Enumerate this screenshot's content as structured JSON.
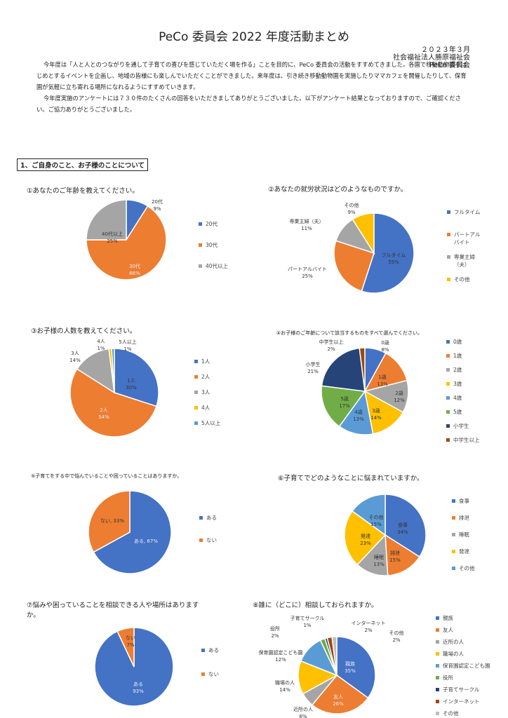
{
  "doc": {
    "title": "PeCo 委員会 2022 年度活動まとめ",
    "date": "２０２３年３月",
    "org": "社会福祉法人勝原福祉会",
    "committee": "PeCo 委員会",
    "intro_p1": "今年度は「人と人とのつながりを通して子育ての喜びを感じていただく場を作る」ことを目的に、PeCo 委員会の活動をすすめてきました。各園で移動動物園をはじめとするイベントを企画し、地域の皆様にも楽しんでいただくことができました。来年度は、引き続き移動動物園を実施したりママカフェを開催したりして、保育園が気軽に立ち寄れる場所になれるようにすすめていきます。",
    "intro_p2": "今年度実施のアンケートには７３０件のたくさんの回答をいただきましてありがとうございました。以下がアンケート結果となっておりますので、ご確認ください。ご協力ありがとうございました。",
    "section1": "1、ご自身のこと、お子様のことについて"
  },
  "colors": {
    "blue": "#4472C4",
    "orange": "#ED7D31",
    "gray": "#A5A5A5",
    "yellow": "#FFC000",
    "lightblue": "#5B9BD5",
    "green": "#70AD47",
    "navy": "#264478",
    "brown": "#9E480E",
    "lightgray": "#BFBFBF"
  },
  "chart_data": [
    {
      "type": "pie",
      "title": "①あなたのご年齢を教えてください。",
      "categories": [
        "20代",
        "30代",
        "40代以上"
      ],
      "values": [
        9,
        66,
        25
      ],
      "colors": [
        "#4472C4",
        "#ED7D31",
        "#A5A5A5"
      ],
      "labels": [
        {
          "name": "20代",
          "pct": "9%"
        },
        {
          "name": "30代",
          "pct": "66%"
        },
        {
          "name": "40代以上",
          "pct": "25%"
        }
      ],
      "legend": [
        "20代",
        "30代",
        "40代以上"
      ]
    },
    {
      "type": "pie",
      "title": "②あなたの就労状況はどのようなものですか。",
      "categories": [
        "フルタイム",
        "パートアルバイト",
        "専業主婦（夫）",
        "その他"
      ],
      "values": [
        55,
        25,
        11,
        9
      ],
      "colors": [
        "#4472C4",
        "#ED7D31",
        "#A5A5A5",
        "#FFC000"
      ],
      "labels": [
        {
          "name": "フルタイム",
          "pct": "55%"
        },
        {
          "name": "パートアルバイト",
          "pct": "25%"
        },
        {
          "name": "専業主婦（夫）",
          "pct": "11%"
        },
        {
          "name": "その他",
          "pct": "9%"
        }
      ],
      "legend": [
        "フルタイム",
        "パートアル\nバイト",
        "専業主婦\n（夫）",
        "その他"
      ]
    },
    {
      "type": "pie",
      "title": "③お子様の人数を教えてください。",
      "categories": [
        "1人",
        "2人",
        "3人",
        "4人",
        "5人以上"
      ],
      "values": [
        30,
        54,
        14,
        1,
        1
      ],
      "colors": [
        "#4472C4",
        "#ED7D31",
        "#A5A5A5",
        "#FFC000",
        "#5B9BD5"
      ],
      "labels": [
        {
          "name": "1人",
          "pct": "30%"
        },
        {
          "name": "2人",
          "pct": "54%"
        },
        {
          "name": "3人",
          "pct": "14%"
        },
        {
          "name": "4人",
          "pct": "1%"
        },
        {
          "name": "5人以上",
          "pct": "1%"
        }
      ],
      "legend": [
        "1人",
        "2人",
        "3人",
        "4人",
        "5人以上"
      ]
    },
    {
      "type": "pie",
      "title": "④お子様のご年齢について該当するものをすべて選んでください。",
      "categories": [
        "0歳",
        "1歳",
        "2歳",
        "3歳",
        "4歳",
        "5歳",
        "小学生",
        "中学生以上"
      ],
      "values": [
        8,
        13,
        12,
        14,
        13,
        17,
        21,
        2
      ],
      "colors": [
        "#4472C4",
        "#ED7D31",
        "#A5A5A5",
        "#FFC000",
        "#5B9BD5",
        "#70AD47",
        "#264478",
        "#9E480E"
      ],
      "labels": [
        {
          "name": "0歳",
          "pct": "8%"
        },
        {
          "name": "1歳",
          "pct": "13%"
        },
        {
          "name": "2歳",
          "pct": "12%"
        },
        {
          "name": "3歳",
          "pct": "14%"
        },
        {
          "name": "4歳",
          "pct": "13%"
        },
        {
          "name": "5歳",
          "pct": "17%"
        },
        {
          "name": "小学生",
          "pct": "21%"
        },
        {
          "name": "中学生以上",
          "pct": "2%"
        }
      ],
      "legend": [
        "0歳",
        "1歳",
        "2歳",
        "3歳",
        "4歳",
        "5歳",
        "小学生",
        "中学生以上"
      ]
    },
    {
      "type": "pie",
      "title": "⑤子育てをする中で悩んでいることや困っていることはありますか。",
      "categories": [
        "ある",
        "ない"
      ],
      "values": [
        67,
        33
      ],
      "colors": [
        "#4472C4",
        "#ED7D31"
      ],
      "labels": [
        {
          "name": "ある, 67%",
          "pct": ""
        },
        {
          "name": "ない, 33%",
          "pct": ""
        }
      ],
      "legend": [
        "ある",
        "ない"
      ]
    },
    {
      "type": "pie",
      "title": "⑥子育てでどのようなことに悩まれていますか。",
      "categories": [
        "食事",
        "排泄",
        "睡眠",
        "発達",
        "その他"
      ],
      "values": [
        34,
        15,
        13,
        23,
        15
      ],
      "colors": [
        "#4472C4",
        "#ED7D31",
        "#A5A5A5",
        "#FFC000",
        "#5B9BD5"
      ],
      "labels": [
        {
          "name": "食事",
          "pct": "34%"
        },
        {
          "name": "排泄",
          "pct": "15%"
        },
        {
          "name": "睡眠",
          "pct": "13%"
        },
        {
          "name": "発達",
          "pct": "23%"
        },
        {
          "name": "その他",
          "pct": "15%"
        }
      ],
      "legend": [
        "食事",
        "排泄",
        "睡眠",
        "発達",
        "その他"
      ]
    },
    {
      "type": "pie",
      "title": "⑦悩みや困っていることを相談できる人や場所はありますか。",
      "categories": [
        "ある",
        "ない"
      ],
      "values": [
        93,
        7
      ],
      "colors": [
        "#4472C4",
        "#ED7D31"
      ],
      "labels": [
        {
          "name": "ある",
          "pct": "93%"
        },
        {
          "name": "ない",
          "pct": "7%"
        }
      ],
      "legend": [
        "ある",
        "ない"
      ]
    },
    {
      "type": "pie",
      "title": "⑧誰に（どこに）相談しておられますか。",
      "categories": [
        "親族",
        "友人",
        "近所の人",
        "職場の人",
        "保育園認定こども園",
        "役所",
        "子育てサークル",
        "インターネット",
        "その他"
      ],
      "values": [
        35,
        26,
        6,
        14,
        12,
        2,
        1,
        2,
        2
      ],
      "colors": [
        "#4472C4",
        "#ED7D31",
        "#A5A5A5",
        "#FFC000",
        "#5B9BD5",
        "#70AD47",
        "#264478",
        "#9E480E",
        "#BFBFBF"
      ],
      "labels": [
        {
          "name": "親族",
          "pct": "35%"
        },
        {
          "name": "友人",
          "pct": "26%"
        },
        {
          "name": "近所の人",
          "pct": "6%"
        },
        {
          "name": "職場の人",
          "pct": "14%"
        },
        {
          "name": "保育園認定こども園",
          "pct": "12%"
        },
        {
          "name": "役所",
          "pct": "2%"
        },
        {
          "name": "子育てサークル",
          "pct": "1%"
        },
        {
          "name": "インターネット",
          "pct": "2%"
        },
        {
          "name": "その他",
          "pct": "2%"
        }
      ],
      "legend": [
        "親族",
        "友人",
        "近所の人",
        "職場の人",
        "保育園認定こども園",
        "役所",
        "子育てサークル",
        "インターネット",
        "その他"
      ]
    }
  ]
}
